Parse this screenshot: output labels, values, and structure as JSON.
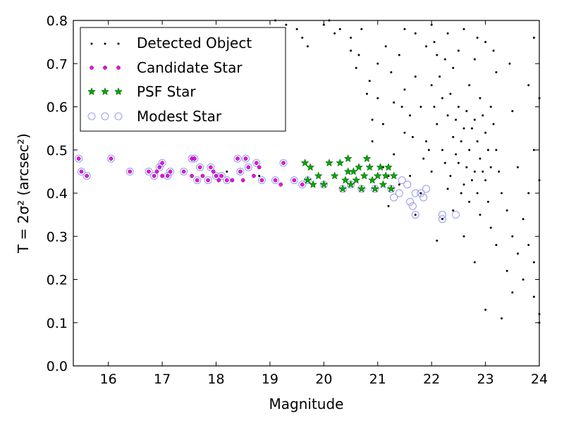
{
  "chart_data": {
    "type": "scatter",
    "title": "",
    "xlabel": "Magnitude",
    "ylabel": "T = 2σ² (arcsec²)",
    "xlim": [
      15.35,
      24.0
    ],
    "ylim": [
      0.0,
      0.8
    ],
    "x_ticks": [
      16,
      17,
      18,
      19,
      20,
      21,
      22,
      23,
      24
    ],
    "y_ticks": [
      0.0,
      0.1,
      0.2,
      0.3,
      0.4,
      0.5,
      0.6,
      0.7,
      0.8
    ],
    "x_tick_labels": [
      "16",
      "17",
      "18",
      "19",
      "20",
      "21",
      "22",
      "23",
      "24"
    ],
    "y_tick_labels": [
      "0.0",
      "0.1",
      "0.2",
      "0.3",
      "0.4",
      "0.5",
      "0.6",
      "0.7",
      "0.8"
    ],
    "grid": false,
    "legend": "top-left",
    "series": [
      {
        "name": "Detected Object",
        "color": "#000000",
        "marker": "dot",
        "points": [
          [
            18.2,
            0.45
          ],
          [
            18.8,
            0.44
          ],
          [
            19.1,
            0.8
          ],
          [
            19.3,
            0.79
          ],
          [
            19.5,
            0.78
          ],
          [
            19.6,
            0.76
          ],
          [
            19.7,
            0.74
          ],
          [
            20.0,
            0.79
          ],
          [
            20.1,
            0.8
          ],
          [
            20.2,
            0.77
          ],
          [
            20.3,
            0.78
          ],
          [
            20.5,
            0.76
          ],
          [
            20.5,
            0.73
          ],
          [
            20.6,
            0.69
          ],
          [
            20.7,
            0.78
          ],
          [
            20.8,
            0.63
          ],
          [
            20.9,
            0.57
          ],
          [
            20.9,
            0.52
          ],
          [
            21.0,
            0.7
          ],
          [
            21.0,
            0.62
          ],
          [
            21.1,
            0.56
          ],
          [
            21.1,
            0.46
          ],
          [
            21.2,
            0.44
          ],
          [
            21.2,
            0.37
          ],
          [
            21.3,
            0.61
          ],
          [
            21.3,
            0.49
          ],
          [
            21.4,
            0.72
          ],
          [
            21.4,
            0.42
          ],
          [
            21.5,
            0.78
          ],
          [
            21.5,
            0.64
          ],
          [
            21.5,
            0.54
          ],
          [
            21.6,
            0.58
          ],
          [
            21.6,
            0.44
          ],
          [
            21.7,
            0.77
          ],
          [
            21.7,
            0.67
          ],
          [
            21.7,
            0.35
          ],
          [
            21.8,
            0.6
          ],
          [
            21.8,
            0.4
          ],
          [
            21.9,
            0.74
          ],
          [
            21.9,
            0.52
          ],
          [
            22.0,
            0.79
          ],
          [
            22.0,
            0.65
          ],
          [
            22.0,
            0.45
          ],
          [
            22.1,
            0.72
          ],
          [
            22.1,
            0.56
          ],
          [
            22.1,
            0.29
          ],
          [
            22.2,
            0.62
          ],
          [
            22.2,
            0.5
          ],
          [
            22.2,
            0.34
          ],
          [
            22.3,
            0.77
          ],
          [
            22.3,
            0.58
          ],
          [
            22.3,
            0.41
          ],
          [
            22.4,
            0.69
          ],
          [
            22.4,
            0.53
          ],
          [
            22.4,
            0.36
          ],
          [
            22.5,
            0.73
          ],
          [
            22.5,
            0.6
          ],
          [
            22.5,
            0.47
          ],
          [
            22.6,
            0.78
          ],
          [
            22.6,
            0.55
          ],
          [
            22.6,
            0.42
          ],
          [
            22.6,
            0.3
          ],
          [
            22.7,
            0.65
          ],
          [
            22.7,
            0.5
          ],
          [
            22.7,
            0.38
          ],
          [
            22.8,
            0.71
          ],
          [
            22.8,
            0.57
          ],
          [
            22.8,
            0.45
          ],
          [
            22.8,
            0.24
          ],
          [
            22.9,
            0.62
          ],
          [
            22.9,
            0.48
          ],
          [
            22.9,
            0.35
          ],
          [
            23.0,
            0.75
          ],
          [
            23.0,
            0.54
          ],
          [
            23.0,
            0.43
          ],
          [
            23.0,
            0.13
          ],
          [
            23.1,
            0.6
          ],
          [
            23.1,
            0.46
          ],
          [
            23.1,
            0.32
          ],
          [
            23.2,
            0.68
          ],
          [
            23.2,
            0.5
          ],
          [
            23.2,
            0.28
          ],
          [
            23.3,
            0.4
          ],
          [
            23.3,
            0.11
          ],
          [
            23.4,
            0.36
          ],
          [
            23.4,
            0.22
          ],
          [
            23.5,
            0.59
          ],
          [
            23.5,
            0.3
          ],
          [
            23.5,
            0.17
          ],
          [
            23.6,
            0.46
          ],
          [
            23.6,
            0.26
          ],
          [
            23.7,
            0.34
          ],
          [
            23.7,
            0.2
          ],
          [
            23.8,
            0.65
          ],
          [
            23.8,
            0.4
          ],
          [
            23.8,
            0.28
          ],
          [
            23.9,
            0.5
          ],
          [
            23.9,
            0.24
          ],
          [
            23.9,
            0.16
          ],
          [
            24.0,
            0.62
          ],
          [
            24.0,
            0.43
          ],
          [
            24.0,
            0.12
          ],
          [
            24.0,
            0.1
          ],
          [
            22.05,
            0.6
          ],
          [
            22.15,
            0.67
          ],
          [
            22.35,
            0.63
          ],
          [
            22.45,
            0.57
          ],
          [
            22.55,
            0.52
          ],
          [
            22.65,
            0.59
          ],
          [
            22.75,
            0.55
          ],
          [
            22.85,
            0.52
          ],
          [
            22.95,
            0.58
          ],
          [
            23.05,
            0.5
          ],
          [
            23.15,
            0.56
          ],
          [
            23.25,
            0.45
          ],
          [
            22.25,
            0.47
          ],
          [
            22.35,
            0.44
          ],
          [
            22.45,
            0.49
          ],
          [
            22.55,
            0.4
          ],
          [
            22.65,
            0.46
          ],
          [
            22.75,
            0.43
          ],
          [
            22.85,
            0.4
          ],
          [
            22.95,
            0.45
          ],
          [
            23.05,
            0.38
          ],
          [
            21.85,
            0.48
          ],
          [
            21.95,
            0.5
          ],
          [
            21.65,
            0.53
          ],
          [
            21.45,
            0.6
          ],
          [
            21.25,
            0.68
          ],
          [
            21.15,
            0.74
          ],
          [
            20.85,
            0.66
          ],
          [
            20.65,
            0.72
          ],
          [
            22.05,
            0.75
          ],
          [
            22.25,
            0.71
          ],
          [
            22.85,
            0.76
          ],
          [
            23.15,
            0.73
          ],
          [
            23.45,
            0.7
          ],
          [
            23.9,
            0.76
          ]
        ]
      },
      {
        "name": "Candidate Star",
        "color": "#ff00ff",
        "marker": "circle-small",
        "points": [
          [
            15.45,
            0.48
          ],
          [
            15.5,
            0.45
          ],
          [
            15.6,
            0.44
          ],
          [
            16.05,
            0.48
          ],
          [
            16.4,
            0.45
          ],
          [
            16.75,
            0.45
          ],
          [
            16.85,
            0.44
          ],
          [
            16.9,
            0.45
          ],
          [
            16.95,
            0.46
          ],
          [
            17.0,
            0.47
          ],
          [
            17.0,
            0.44
          ],
          [
            17.1,
            0.44
          ],
          [
            17.15,
            0.45
          ],
          [
            17.4,
            0.45
          ],
          [
            17.55,
            0.48
          ],
          [
            17.55,
            0.44
          ],
          [
            17.6,
            0.48
          ],
          [
            17.65,
            0.43
          ],
          [
            17.7,
            0.46
          ],
          [
            17.75,
            0.44
          ],
          [
            17.85,
            0.43
          ],
          [
            17.9,
            0.46
          ],
          [
            17.95,
            0.45
          ],
          [
            18.0,
            0.44
          ],
          [
            18.05,
            0.43
          ],
          [
            18.1,
            0.44
          ],
          [
            18.2,
            0.43
          ],
          [
            18.3,
            0.43
          ],
          [
            18.4,
            0.48
          ],
          [
            18.45,
            0.45
          ],
          [
            18.5,
            0.43
          ],
          [
            18.55,
            0.48
          ],
          [
            18.6,
            0.46
          ],
          [
            18.7,
            0.44
          ],
          [
            18.75,
            0.47
          ],
          [
            18.8,
            0.46
          ],
          [
            18.85,
            0.43
          ],
          [
            19.1,
            0.43
          ],
          [
            19.2,
            0.42
          ],
          [
            19.25,
            0.47
          ],
          [
            19.45,
            0.43
          ],
          [
            19.6,
            0.42
          ]
        ]
      },
      {
        "name": "PSF Star",
        "color": "#00aa00",
        "marker": "star",
        "points": [
          [
            19.65,
            0.47
          ],
          [
            19.7,
            0.43
          ],
          [
            19.75,
            0.46
          ],
          [
            19.8,
            0.42
          ],
          [
            19.9,
            0.44
          ],
          [
            20.0,
            0.42
          ],
          [
            20.1,
            0.47
          ],
          [
            20.2,
            0.44
          ],
          [
            20.3,
            0.47
          ],
          [
            20.35,
            0.41
          ],
          [
            20.4,
            0.43
          ],
          [
            20.45,
            0.45
          ],
          [
            20.45,
            0.48
          ],
          [
            20.5,
            0.42
          ],
          [
            20.55,
            0.45
          ],
          [
            20.6,
            0.43
          ],
          [
            20.65,
            0.46
          ],
          [
            20.7,
            0.41
          ],
          [
            20.75,
            0.44
          ],
          [
            20.8,
            0.48
          ],
          [
            20.85,
            0.46
          ],
          [
            20.9,
            0.43
          ],
          [
            20.95,
            0.41
          ],
          [
            21.0,
            0.44
          ],
          [
            21.05,
            0.46
          ],
          [
            21.1,
            0.42
          ],
          [
            21.15,
            0.44
          ],
          [
            21.2,
            0.46
          ],
          [
            21.25,
            0.41
          ],
          [
            21.3,
            0.44
          ]
        ]
      },
      {
        "name": "Modest Star",
        "color": "#9999ee",
        "marker": "circle-open",
        "points": [
          [
            15.45,
            0.48
          ],
          [
            15.5,
            0.45
          ],
          [
            15.6,
            0.44
          ],
          [
            16.05,
            0.48
          ],
          [
            16.4,
            0.45
          ],
          [
            16.75,
            0.45
          ],
          [
            16.85,
            0.44
          ],
          [
            16.95,
            0.46
          ],
          [
            17.0,
            0.47
          ],
          [
            17.1,
            0.44
          ],
          [
            17.15,
            0.45
          ],
          [
            17.4,
            0.45
          ],
          [
            17.55,
            0.48
          ],
          [
            17.6,
            0.48
          ],
          [
            17.65,
            0.43
          ],
          [
            17.7,
            0.46
          ],
          [
            17.85,
            0.43
          ],
          [
            17.9,
            0.46
          ],
          [
            18.0,
            0.44
          ],
          [
            18.1,
            0.44
          ],
          [
            18.2,
            0.43
          ],
          [
            18.4,
            0.48
          ],
          [
            18.45,
            0.45
          ],
          [
            18.55,
            0.48
          ],
          [
            18.6,
            0.46
          ],
          [
            18.75,
            0.47
          ],
          [
            18.85,
            0.43
          ],
          [
            19.1,
            0.43
          ],
          [
            19.25,
            0.47
          ],
          [
            19.45,
            0.43
          ],
          [
            19.6,
            0.42
          ],
          [
            19.7,
            0.43
          ],
          [
            20.0,
            0.42
          ],
          [
            20.35,
            0.41
          ],
          [
            20.5,
            0.42
          ],
          [
            20.7,
            0.41
          ],
          [
            20.95,
            0.41
          ],
          [
            21.25,
            0.41
          ],
          [
            21.3,
            0.39
          ],
          [
            21.4,
            0.4
          ],
          [
            21.45,
            0.43
          ],
          [
            21.55,
            0.42
          ],
          [
            21.6,
            0.38
          ],
          [
            21.65,
            0.37
          ],
          [
            21.7,
            0.4
          ],
          [
            21.7,
            0.35
          ],
          [
            21.8,
            0.4
          ],
          [
            21.85,
            0.39
          ],
          [
            21.9,
            0.41
          ],
          [
            22.2,
            0.34
          ],
          [
            22.2,
            0.35
          ],
          [
            22.45,
            0.35
          ]
        ]
      }
    ]
  }
}
